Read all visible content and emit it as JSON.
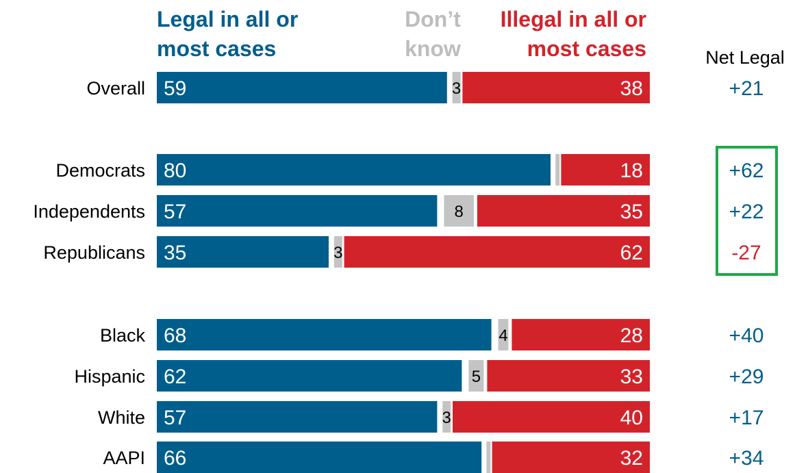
{
  "chart_data": {
    "type": "bar",
    "stacked": true,
    "orientation": "horizontal",
    "headers": {
      "legal": [
        "Legal in all or",
        "most cases"
      ],
      "dont_know": [
        "Don’t",
        "know"
      ],
      "illegal": [
        "Illegal in all or",
        "most cases"
      ],
      "net": "Net Legal"
    },
    "categories": [
      "Overall",
      "Democrats",
      "Independents",
      "Republicans",
      "Black",
      "Hispanic",
      "White",
      "AAPI"
    ],
    "series": [
      {
        "name": "Legal in all or most cases",
        "values": [
          59,
          80,
          57,
          35,
          68,
          62,
          57,
          66
        ]
      },
      {
        "name": "Don’t know",
        "values": [
          3,
          2,
          8,
          3,
          4,
          5,
          3,
          2
        ]
      },
      {
        "name": "Illegal in all or most cases",
        "values": [
          38,
          18,
          35,
          62,
          28,
          33,
          40,
          32
        ]
      }
    ],
    "dont_know_labels": [
      "3",
      "",
      "8",
      "3",
      "4",
      "5",
      "3",
      ""
    ],
    "net_legal": [
      "+21",
      "+62",
      "+22",
      "-27",
      "+40",
      "+29",
      "+17",
      "+34"
    ],
    "highlighted_rows": [
      "Democrats",
      "Independents",
      "Republicans"
    ],
    "colors": {
      "legal": "#005e8c",
      "dont_know": "#c4c4c4",
      "illegal": "#d3232a",
      "dont_know_header": "#bdbdbd",
      "highlight_box": "#1fa84a",
      "text": "#000000",
      "value_text": "#ffffff"
    }
  }
}
